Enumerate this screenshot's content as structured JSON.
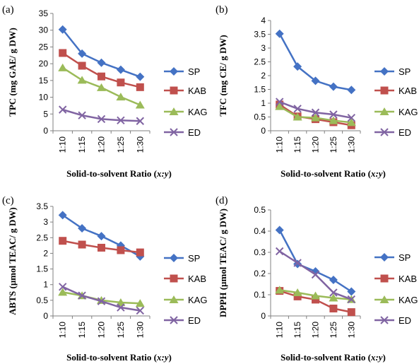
{
  "series_colors": {
    "SP": "#4472C4",
    "KAB": "#C0504D",
    "KAG": "#9BBB59",
    "ED": "#8064A2"
  },
  "chart_data": [
    {
      "panel_label": "(a)",
      "type": "line",
      "categories": [
        "1:10",
        "1:15",
        "1:20",
        "1:25",
        "1:30"
      ],
      "ylabel": "TPC (mg GAE/ g DW)",
      "xlabel": "Solid-to-solvent Ratio (x:y)",
      "ylim": [
        0,
        35
      ],
      "yticks": [
        "0",
        "5",
        "10",
        "15",
        "20",
        "25",
        "30",
        "35"
      ],
      "legend_position": "right",
      "grid": false,
      "series": [
        {
          "name": "SP",
          "marker": "diamond",
          "values": [
            30.2,
            23.0,
            20.3,
            18.2,
            16.1
          ]
        },
        {
          "name": "KAB",
          "marker": "square",
          "values": [
            23.2,
            19.4,
            16.2,
            14.4,
            13.0
          ]
        },
        {
          "name": "KAG",
          "marker": "triangle",
          "values": [
            18.8,
            15.1,
            12.9,
            10.1,
            7.7
          ]
        },
        {
          "name": "ED",
          "marker": "x",
          "values": [
            6.3,
            4.6,
            3.5,
            3.1,
            2.9
          ]
        }
      ]
    },
    {
      "panel_label": "(b)",
      "type": "line",
      "categories": [
        "1:10",
        "1:15",
        "1:20",
        "1:25",
        "1:30"
      ],
      "ylabel": "TFC (mg CE/ g DW)",
      "xlabel": "Solid-to-solvent Ratio (x:y)",
      "ylim": [
        0,
        4
      ],
      "yticks": [
        "0",
        "0.5",
        "1",
        "1.5",
        "2",
        "2.5",
        "3",
        "3.5",
        "4"
      ],
      "legend_position": "right",
      "grid": false,
      "series": [
        {
          "name": "SP",
          "marker": "diamond",
          "values": [
            3.52,
            2.33,
            1.81,
            1.6,
            1.48
          ]
        },
        {
          "name": "KAB",
          "marker": "square",
          "values": [
            0.95,
            0.52,
            0.42,
            0.31,
            0.2
          ]
        },
        {
          "name": "KAG",
          "marker": "triangle",
          "values": [
            0.88,
            0.5,
            0.47,
            0.37,
            0.3
          ]
        },
        {
          "name": "ED",
          "marker": "x",
          "values": [
            1.05,
            0.8,
            0.66,
            0.59,
            0.47
          ]
        }
      ]
    },
    {
      "panel_label": "(c)",
      "type": "line",
      "categories": [
        "1:10",
        "1:15",
        "1:20",
        "1:25",
        "1:30"
      ],
      "ylabel": "ABTS (µmol TEAC/ g DW)",
      "xlabel": "Solid-to-solvent Ratio (x:y)",
      "ylim": [
        0,
        3.5
      ],
      "yticks": [
        "0",
        "0.5",
        "1",
        "1.5",
        "2",
        "2.5",
        "3",
        "3.5"
      ],
      "legend_position": "right",
      "grid": false,
      "series": [
        {
          "name": "SP",
          "marker": "diamond",
          "values": [
            3.22,
            2.8,
            2.55,
            2.25,
            1.9
          ]
        },
        {
          "name": "KAB",
          "marker": "square",
          "values": [
            2.4,
            2.28,
            2.18,
            2.1,
            2.03
          ]
        },
        {
          "name": "KAG",
          "marker": "triangle",
          "values": [
            0.76,
            0.65,
            0.5,
            0.43,
            0.4
          ]
        },
        {
          "name": "ED",
          "marker": "x",
          "values": [
            0.93,
            0.65,
            0.47,
            0.27,
            0.17
          ]
        }
      ]
    },
    {
      "panel_label": "(d)",
      "type": "line",
      "categories": [
        "1:10",
        "1:15",
        "1:20",
        "1:25",
        "1:30"
      ],
      "ylabel": "DPPH (µmol TEAC/ g DW)",
      "xlabel": "Solid-to-solvent Ratio (x:y)",
      "ylim": [
        0,
        0.5
      ],
      "yticks": [
        "0",
        "0.1",
        "0.2",
        "0.3",
        "0.4",
        "0.5"
      ],
      "legend_position": "right",
      "grid": false,
      "series": [
        {
          "name": "SP",
          "marker": "diamond",
          "values": [
            0.405,
            0.245,
            0.21,
            0.17,
            0.115
          ]
        },
        {
          "name": "KAB",
          "marker": "square",
          "values": [
            0.118,
            0.092,
            0.077,
            0.035,
            0.018
          ]
        },
        {
          "name": "KAG",
          "marker": "triangle",
          "values": [
            0.122,
            0.11,
            0.095,
            0.085,
            0.078
          ]
        },
        {
          "name": "ED",
          "marker": "x",
          "values": [
            0.305,
            0.25,
            0.195,
            0.11,
            0.078
          ]
        }
      ]
    }
  ]
}
